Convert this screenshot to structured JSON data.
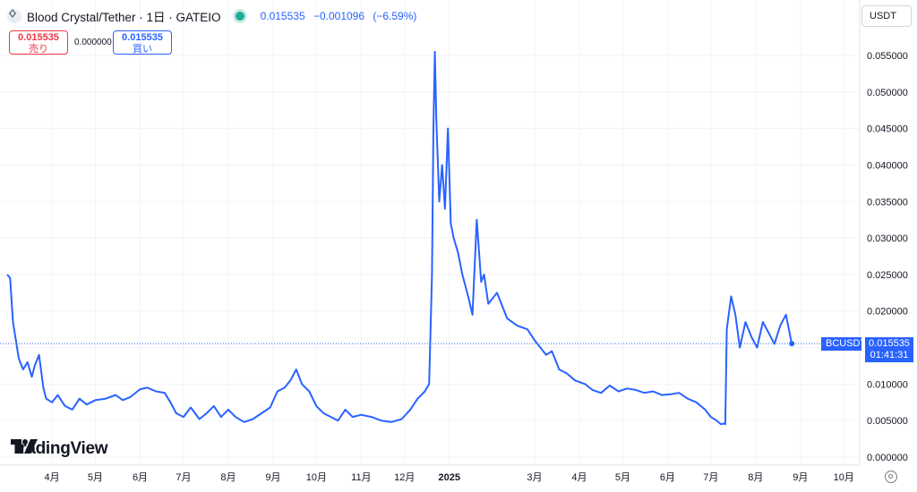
{
  "header": {
    "title": "Blood Crystal/Tether · 1日 · GATEIO",
    "last": "0.015535",
    "change": "−0.001096",
    "change_pct": "(−6.59%)"
  },
  "trade": {
    "sell_price": "0.015535",
    "sell_label": "売り",
    "spread": "0.000000",
    "buy_price": "0.015535",
    "buy_label": "買い"
  },
  "currency": "USDT",
  "last_price_label": {
    "symbol": "BCUSDT",
    "price": "0.015535",
    "countdown": "01:41:31"
  },
  "brand": "TradingView",
  "icons": [
    "symbol-logo-icon",
    "live-status-icon",
    "tradingview-logo-icon",
    "settings-icon"
  ],
  "colors": {
    "line": "#2962ff",
    "sell": "#f23645",
    "buy": "#2962ff",
    "live": "#22ab94"
  },
  "chart_data": {
    "type": "line",
    "series": [
      {
        "x": [
          "2024-03-01",
          "2024-03-03",
          "2024-03-05",
          "2024-03-09",
          "2024-03-12",
          "2024-03-15",
          "2024-03-18",
          "2024-03-20",
          "2024-03-23",
          "2024-03-26",
          "2024-03-28",
          "2024-04-01",
          "2024-04-05",
          "2024-04-10",
          "2024-04-15",
          "2024-04-20",
          "2024-04-25",
          "2024-05-01",
          "2024-05-08",
          "2024-05-15",
          "2024-05-20",
          "2024-05-25",
          "2024-06-01",
          "2024-06-06",
          "2024-06-12",
          "2024-06-18",
          "2024-06-22",
          "2024-06-26",
          "2024-07-01",
          "2024-07-06",
          "2024-07-12",
          "2024-07-17",
          "2024-07-22",
          "2024-07-27",
          "2024-08-01",
          "2024-08-06",
          "2024-08-12",
          "2024-08-18",
          "2024-08-24",
          "2024-08-30",
          "2024-09-04",
          "2024-09-09",
          "2024-09-13",
          "2024-09-17",
          "2024-09-21",
          "2024-09-26",
          "2024-10-01",
          "2024-10-06",
          "2024-10-11",
          "2024-10-16",
          "2024-10-21",
          "2024-10-26",
          "2024-11-01",
          "2024-11-08",
          "2024-11-15",
          "2024-11-22",
          "2024-11-29",
          "2024-12-05",
          "2024-12-10",
          "2024-12-15",
          "2024-12-18",
          "2024-12-20",
          "2024-12-21",
          "2024-12-22",
          "2024-12-23",
          "2024-12-25",
          "2024-12-27",
          "2024-12-29",
          "2024-12-31",
          "2025-01-02",
          "2025-01-04",
          "2025-01-07",
          "2025-01-10",
          "2025-01-14",
          "2025-01-17",
          "2025-01-20",
          "2025-01-23",
          "2025-01-25",
          "2025-01-28",
          "2025-02-03",
          "2025-02-10",
          "2025-02-17",
          "2025-02-24",
          "2025-03-01",
          "2025-03-05",
          "2025-03-09",
          "2025-03-13",
          "2025-03-18",
          "2025-03-23",
          "2025-03-29",
          "2025-04-05",
          "2025-04-10",
          "2025-04-16",
          "2025-04-22",
          "2025-04-28",
          "2025-05-04",
          "2025-05-10",
          "2025-05-16",
          "2025-05-22",
          "2025-05-28",
          "2025-06-03",
          "2025-06-09",
          "2025-06-15",
          "2025-06-21",
          "2025-06-27",
          "2025-07-01",
          "2025-07-05",
          "2025-07-08",
          "2025-07-10",
          "2025-07-11",
          "2025-07-12",
          "2025-07-15",
          "2025-07-18",
          "2025-07-21",
          "2025-07-25",
          "2025-07-29",
          "2025-08-02",
          "2025-08-06",
          "2025-08-10",
          "2025-08-14",
          "2025-08-18",
          "2025-08-22",
          "2025-08-24",
          "2025-08-26"
        ],
        "y": [
          0.025,
          0.0245,
          0.0185,
          0.0135,
          0.012,
          0.013,
          0.011,
          0.0125,
          0.014,
          0.0095,
          0.008,
          0.0075,
          0.0085,
          0.007,
          0.0065,
          0.008,
          0.0072,
          0.0078,
          0.008,
          0.0085,
          0.0078,
          0.0082,
          0.0093,
          0.0095,
          0.009,
          0.0088,
          0.0075,
          0.006,
          0.0055,
          0.0068,
          0.0052,
          0.006,
          0.007,
          0.0055,
          0.0065,
          0.0055,
          0.0048,
          0.0052,
          0.006,
          0.0068,
          0.009,
          0.0095,
          0.0105,
          0.012,
          0.01,
          0.009,
          0.007,
          0.006,
          0.0055,
          0.005,
          0.0065,
          0.0055,
          0.0058,
          0.0055,
          0.005,
          0.0048,
          0.0052,
          0.0065,
          0.008,
          0.009,
          0.01,
          0.025,
          0.045,
          0.0555,
          0.046,
          0.035,
          0.04,
          0.034,
          0.045,
          0.032,
          0.03,
          0.028,
          0.025,
          0.022,
          0.0195,
          0.0325,
          0.024,
          0.025,
          0.021,
          0.0225,
          0.019,
          0.018,
          0.0175,
          0.016,
          0.015,
          0.014,
          0.0145,
          0.012,
          0.0115,
          0.0105,
          0.01,
          0.0092,
          0.0088,
          0.0098,
          0.009,
          0.0094,
          0.0092,
          0.0088,
          0.009,
          0.0085,
          0.0086,
          0.0088,
          0.008,
          0.0075,
          0.0065,
          0.0055,
          0.005,
          0.0045,
          0.0046,
          0.0045,
          0.0175,
          0.022,
          0.0195,
          0.015,
          0.0185,
          0.0165,
          0.015,
          0.0185,
          0.017,
          0.0155,
          0.018,
          0.0195,
          0.0175,
          0.0155
        ]
      }
    ],
    "x_ticks": [
      "4月",
      "5月",
      "6月",
      "7月",
      "8月",
      "9月",
      "10月",
      "11月",
      "12月",
      "2025",
      "3月",
      "4月",
      "5月",
      "6月",
      "7月",
      "8月",
      "9月",
      "10月"
    ],
    "y_ticks": [
      "0.055000",
      "0.050000",
      "0.045000",
      "0.040000",
      "0.035000",
      "0.030000",
      "0.025000",
      "0.020000",
      "0.015000",
      "0.010000",
      "0.005000",
      "0.000000"
    ],
    "ylim": [
      0,
      0.058
    ],
    "xlim": [
      "2024-02-25",
      "2025-10-12"
    ],
    "last_value": 0.015535,
    "grid": true
  }
}
